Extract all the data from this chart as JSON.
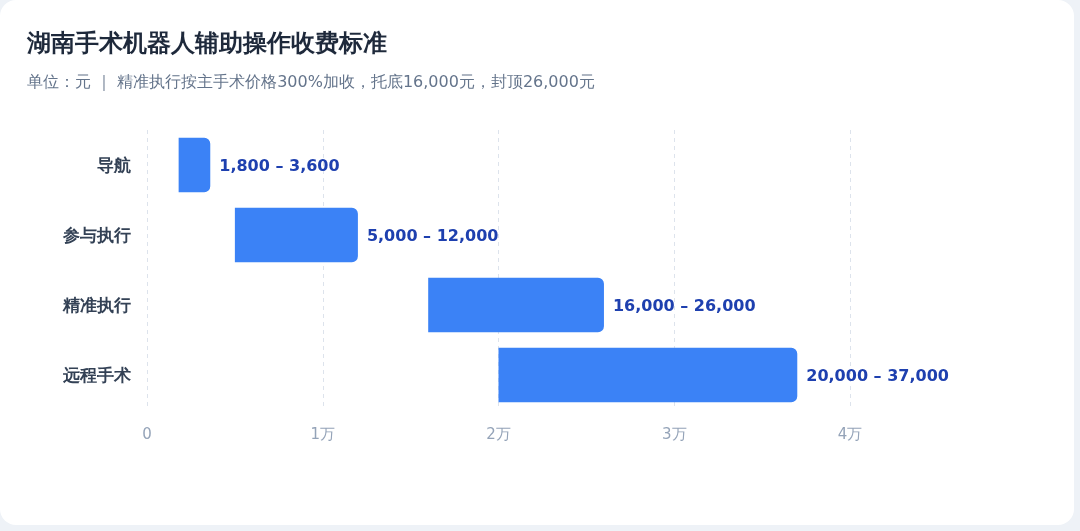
{
  "chart_data": {
    "type": "bar",
    "orientation": "horizontal",
    "title": "湖南手术机器人辅助操作收费标准",
    "subtitle": "单位：元 ｜ 精准执行按主手术价格300%加收，托底16,000元，封顶26,000元",
    "categories": [
      "导航",
      "参与执行",
      "精准执行",
      "远程手术"
    ],
    "base": [
      0.18,
      0.5,
      1.6,
      2
    ],
    "values": [
      0.18,
      0.7,
      1,
      1.7
    ],
    "color": "#3b82f6",
    "annotations": [
      {
        "text": "1,800 – 3,600",
        "x": 0.36,
        "y": "导航"
      },
      {
        "text": "5,000 – 12,000",
        "x": 1.2,
        "y": "参与执行"
      },
      {
        "text": "16,000 – 26,000",
        "x": 2.6,
        "y": "精准执行"
      },
      {
        "text": "20,000 – 37,000",
        "x": 3.7,
        "y": "远程手术"
      }
    ],
    "xlim": [
      0,
      4
    ],
    "xticks": [
      0,
      {
        "value": 1,
        "label": "1万"
      },
      {
        "value": 2,
        "label": "2万"
      },
      {
        "value": 3,
        "label": "3万"
      },
      {
        "value": 4,
        "label": "4万"
      }
    ],
    "grid": "x"
  }
}
